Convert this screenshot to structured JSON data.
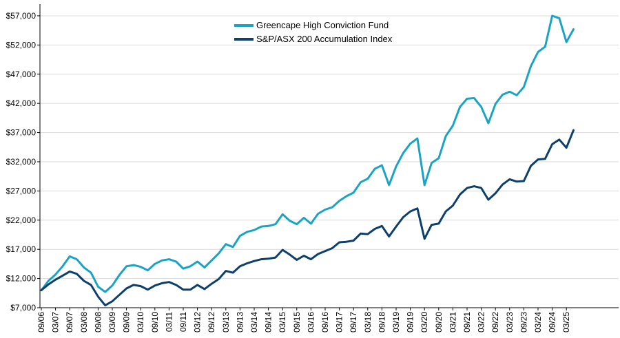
{
  "chart_data": {
    "type": "line",
    "title": "",
    "xlabel": "",
    "ylabel": "",
    "ylim": [
      7000,
      59000
    ],
    "y_ticks": [
      "$7,000",
      "$12,000",
      "$17,000",
      "$22,000",
      "$27,000",
      "$32,000",
      "$37,000",
      "$42,000",
      "$47,000",
      "$52,000",
      "$57,000"
    ],
    "x_ticks": [
      "09/06",
      "03/07",
      "09/07",
      "03/08",
      "09/08",
      "03/09",
      "09/09",
      "03/10",
      "09/10",
      "03/11",
      "09/11",
      "03/12",
      "09/12",
      "03/13",
      "09/13",
      "03/14",
      "09/14",
      "03/15",
      "09/15",
      "03/16",
      "09/16",
      "03/17",
      "09/17",
      "03/18",
      "09/18",
      "03/19",
      "09/19",
      "03/20",
      "09/20",
      "03/21",
      "09/21",
      "03/22",
      "09/22",
      "03/23",
      "09/23",
      "03/24",
      "09/24",
      "03/25"
    ],
    "grid": "horizontal",
    "legend": "top-center",
    "series": [
      {
        "name": "Greencape High Conviction Fund",
        "color": "#1ba3c6",
        "points": [
          [
            "09/06",
            10000
          ],
          [
            "12/06",
            11600
          ],
          [
            "03/07",
            12700
          ],
          [
            "06/07",
            14100
          ],
          [
            "09/07",
            15800
          ],
          [
            "12/07",
            15300
          ],
          [
            "03/08",
            13900
          ],
          [
            "06/08",
            13000
          ],
          [
            "09/08",
            10600
          ],
          [
            "12/08",
            9700
          ],
          [
            "03/09",
            10800
          ],
          [
            "06/09",
            12600
          ],
          [
            "09/09",
            14100
          ],
          [
            "12/09",
            14300
          ],
          [
            "03/10",
            14000
          ],
          [
            "06/10",
            13400
          ],
          [
            "09/10",
            14500
          ],
          [
            "12/10",
            15100
          ],
          [
            "03/11",
            15300
          ],
          [
            "06/11",
            14900
          ],
          [
            "09/11",
            13700
          ],
          [
            "12/11",
            14100
          ],
          [
            "03/12",
            14900
          ],
          [
            "06/12",
            13900
          ],
          [
            "09/12",
            15100
          ],
          [
            "12/12",
            16300
          ],
          [
            "03/13",
            17900
          ],
          [
            "06/13",
            17400
          ],
          [
            "09/13",
            19300
          ],
          [
            "12/13",
            20000
          ],
          [
            "03/14",
            20300
          ],
          [
            "06/14",
            20900
          ],
          [
            "09/14",
            21000
          ],
          [
            "12/14",
            21300
          ],
          [
            "03/15",
            23000
          ],
          [
            "06/15",
            21900
          ],
          [
            "09/15",
            21300
          ],
          [
            "12/15",
            22400
          ],
          [
            "03/16",
            21400
          ],
          [
            "06/16",
            23100
          ],
          [
            "09/16",
            23800
          ],
          [
            "12/16",
            24200
          ],
          [
            "03/17",
            25300
          ],
          [
            "06/17",
            26100
          ],
          [
            "09/17",
            26700
          ],
          [
            "12/17",
            28500
          ],
          [
            "03/18",
            29100
          ],
          [
            "06/18",
            30800
          ],
          [
            "09/18",
            31400
          ],
          [
            "12/18",
            28000
          ],
          [
            "03/19",
            31200
          ],
          [
            "06/19",
            33500
          ],
          [
            "09/19",
            35100
          ],
          [
            "12/19",
            36000
          ],
          [
            "03/20",
            28000
          ],
          [
            "06/20",
            31800
          ],
          [
            "09/20",
            32600
          ],
          [
            "12/20",
            36400
          ],
          [
            "03/21",
            38200
          ],
          [
            "06/21",
            41400
          ],
          [
            "09/21",
            42800
          ],
          [
            "12/21",
            42900
          ],
          [
            "03/22",
            41400
          ],
          [
            "06/22",
            38600
          ],
          [
            "09/22",
            41900
          ],
          [
            "12/22",
            43500
          ],
          [
            "03/23",
            44000
          ],
          [
            "06/23",
            43400
          ],
          [
            "09/23",
            44800
          ],
          [
            "12/23",
            48400
          ],
          [
            "03/24",
            50800
          ],
          [
            "06/24",
            51700
          ],
          [
            "09/24",
            57000
          ],
          [
            "12/24",
            56600
          ],
          [
            "03/25",
            52500
          ],
          [
            "06/25",
            54700
          ]
        ]
      },
      {
        "name": "S&P/ASX 200 Accumulation Index",
        "color": "#0c3f6b",
        "points": [
          [
            "09/06",
            10000
          ],
          [
            "12/06",
            11000
          ],
          [
            "03/07",
            11800
          ],
          [
            "06/07",
            12500
          ],
          [
            "09/07",
            13200
          ],
          [
            "12/07",
            12800
          ],
          [
            "03/08",
            11600
          ],
          [
            "06/08",
            10900
          ],
          [
            "09/08",
            8900
          ],
          [
            "12/08",
            7400
          ],
          [
            "03/09",
            8100
          ],
          [
            "06/09",
            9200
          ],
          [
            "09/09",
            10300
          ],
          [
            "12/09",
            10900
          ],
          [
            "03/10",
            10700
          ],
          [
            "06/10",
            10100
          ],
          [
            "09/10",
            10800
          ],
          [
            "12/10",
            11200
          ],
          [
            "03/11",
            11400
          ],
          [
            "06/11",
            10900
          ],
          [
            "09/11",
            10100
          ],
          [
            "12/11",
            10100
          ],
          [
            "03/12",
            10900
          ],
          [
            "06/12",
            10200
          ],
          [
            "09/12",
            11100
          ],
          [
            "12/12",
            11900
          ],
          [
            "03/13",
            13300
          ],
          [
            "06/13",
            13000
          ],
          [
            "09/13",
            14100
          ],
          [
            "12/13",
            14600
          ],
          [
            "03/14",
            15000
          ],
          [
            "06/14",
            15300
          ],
          [
            "09/14",
            15400
          ],
          [
            "12/14",
            15600
          ],
          [
            "03/15",
            16900
          ],
          [
            "06/15",
            16100
          ],
          [
            "09/15",
            15200
          ],
          [
            "12/15",
            15900
          ],
          [
            "03/16",
            15300
          ],
          [
            "06/16",
            16200
          ],
          [
            "09/16",
            16700
          ],
          [
            "12/16",
            17200
          ],
          [
            "03/17",
            18200
          ],
          [
            "06/17",
            18300
          ],
          [
            "09/17",
            18500
          ],
          [
            "12/17",
            19700
          ],
          [
            "03/18",
            19600
          ],
          [
            "06/18",
            20500
          ],
          [
            "09/18",
            21000
          ],
          [
            "12/18",
            19200
          ],
          [
            "03/19",
            20900
          ],
          [
            "06/19",
            22500
          ],
          [
            "09/19",
            23500
          ],
          [
            "12/19",
            24000
          ],
          [
            "03/20",
            18800
          ],
          [
            "06/20",
            21200
          ],
          [
            "09/20",
            21400
          ],
          [
            "12/20",
            23500
          ],
          [
            "03/21",
            24500
          ],
          [
            "06/21",
            26400
          ],
          [
            "09/21",
            27500
          ],
          [
            "12/21",
            27800
          ],
          [
            "03/22",
            27500
          ],
          [
            "06/22",
            25500
          ],
          [
            "09/22",
            26600
          ],
          [
            "12/22",
            28100
          ],
          [
            "03/23",
            29000
          ],
          [
            "06/23",
            28600
          ],
          [
            "09/23",
            28700
          ],
          [
            "12/23",
            31300
          ],
          [
            "03/24",
            32400
          ],
          [
            "06/24",
            32500
          ],
          [
            "09/24",
            35000
          ],
          [
            "12/24",
            35800
          ],
          [
            "03/25",
            34400
          ],
          [
            "06/25",
            37400
          ]
        ]
      }
    ]
  }
}
